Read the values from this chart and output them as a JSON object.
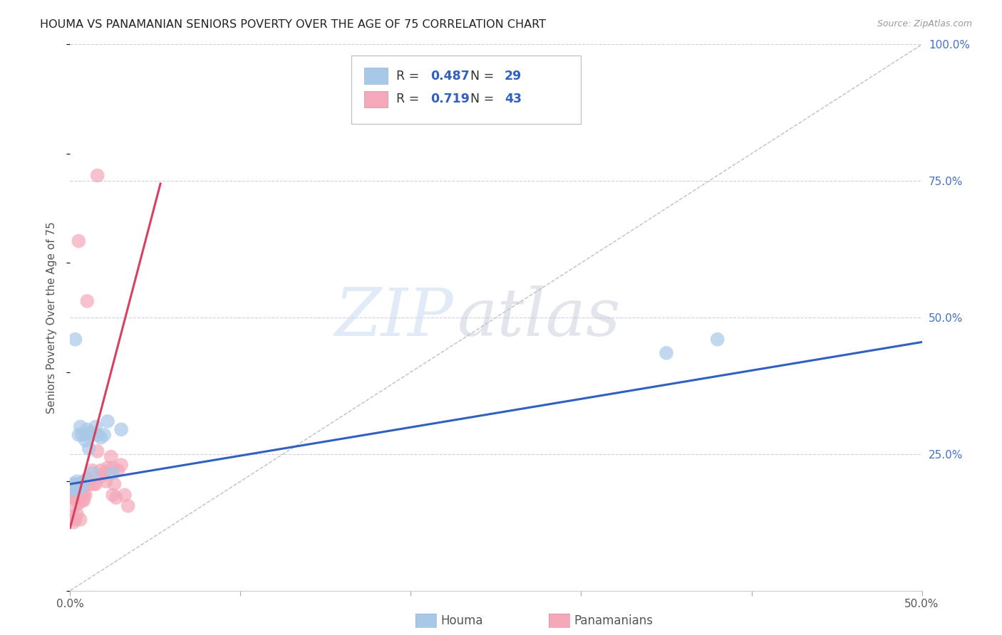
{
  "title": "HOUMA VS PANAMANIAN SENIORS POVERTY OVER THE AGE OF 75 CORRELATION CHART",
  "source": "Source: ZipAtlas.com",
  "ylabel": "Seniors Poverty Over the Age of 75",
  "xlim": [
    0.0,
    0.5
  ],
  "ylim": [
    0.0,
    1.0
  ],
  "houma_R": 0.487,
  "houma_N": 29,
  "panama_R": 0.719,
  "panama_N": 43,
  "houma_color": "#a8c8e8",
  "panama_color": "#f4a8b8",
  "houma_line_color": "#3060c0",
  "panama_line_color": "#d84060",
  "diagonal_color": "#c0c0c0",
  "background_color": "#ffffff",
  "grid_color": "#d0d0e0",
  "watermark_zip": "ZIP",
  "watermark_atlas": "atlas",
  "houma_x": [
    0.001,
    0.002,
    0.003,
    0.003,
    0.004,
    0.004,
    0.005,
    0.005,
    0.006,
    0.007,
    0.007,
    0.008,
    0.009,
    0.01,
    0.011,
    0.012,
    0.013,
    0.015,
    0.016,
    0.018,
    0.02,
    0.022,
    0.025,
    0.03,
    0.003,
    0.006,
    0.01,
    0.35,
    0.38
  ],
  "houma_y": [
    0.195,
    0.185,
    0.19,
    0.195,
    0.2,
    0.185,
    0.195,
    0.285,
    0.19,
    0.195,
    0.285,
    0.2,
    0.275,
    0.285,
    0.26,
    0.29,
    0.215,
    0.3,
    0.285,
    0.28,
    0.285,
    0.31,
    0.215,
    0.295,
    0.46,
    0.3,
    0.295,
    0.435,
    0.46
  ],
  "panama_x": [
    0.001,
    0.001,
    0.002,
    0.002,
    0.003,
    0.003,
    0.003,
    0.004,
    0.004,
    0.005,
    0.005,
    0.006,
    0.006,
    0.007,
    0.007,
    0.008,
    0.008,
    0.009,
    0.01,
    0.01,
    0.011,
    0.012,
    0.013,
    0.014,
    0.015,
    0.016,
    0.018,
    0.019,
    0.02,
    0.021,
    0.022,
    0.024,
    0.025,
    0.025,
    0.026,
    0.027,
    0.028,
    0.03,
    0.032,
    0.034,
    0.005,
    0.01,
    0.016
  ],
  "panama_y": [
    0.17,
    0.135,
    0.17,
    0.125,
    0.175,
    0.155,
    0.13,
    0.17,
    0.14,
    0.16,
    0.18,
    0.185,
    0.13,
    0.165,
    0.175,
    0.165,
    0.175,
    0.175,
    0.205,
    0.195,
    0.2,
    0.195,
    0.22,
    0.195,
    0.195,
    0.255,
    0.22,
    0.21,
    0.215,
    0.2,
    0.225,
    0.245,
    0.225,
    0.175,
    0.195,
    0.17,
    0.22,
    0.23,
    0.175,
    0.155,
    0.64,
    0.53,
    0.76
  ],
  "houma_line_x": [
    0.0,
    0.5
  ],
  "houma_line_y": [
    0.195,
    0.455
  ],
  "panama_line_x": [
    0.0,
    0.053
  ],
  "panama_line_y": [
    0.115,
    0.745
  ]
}
